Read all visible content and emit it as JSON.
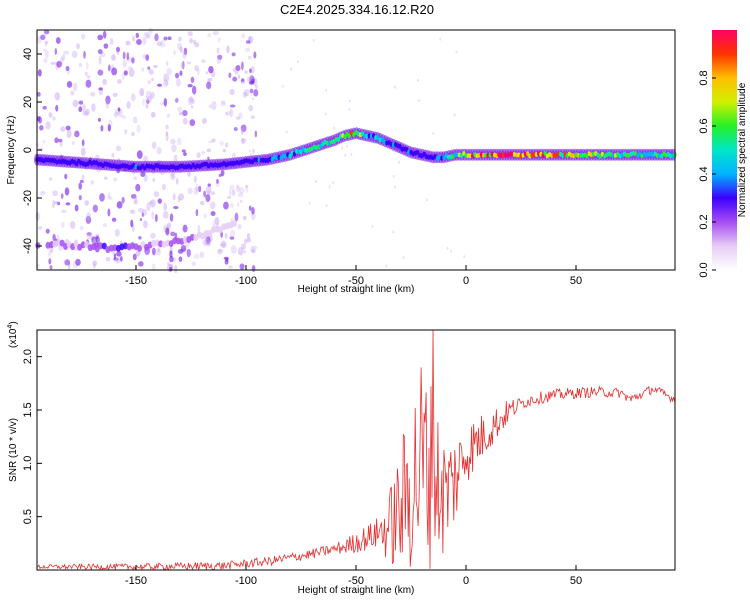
{
  "figure_title": "C2E4.2025.334.16.12.R20",
  "colors": {
    "snr_line": "#e53030",
    "spec_blob_base": "#7a1ee6",
    "spec_haze": "#c9a5f2"
  },
  "colorscale": [
    "#ffffff",
    "#e6ccf5",
    "#a64df2",
    "#3b00ff",
    "#00b3ff",
    "#00e6c8",
    "#26f026",
    "#d2f000",
    "#ffbf00",
    "#ff3300",
    "#ff0066"
  ],
  "chart_data": [
    {
      "type": "heatmap",
      "name": "spectrogram",
      "xlabel": "Height of straight line (km)",
      "ylabel": "Frequency (Hz)",
      "xlim": [
        -195,
        95
      ],
      "ylim": [
        -50,
        50
      ],
      "xticks": [
        -150,
        -100,
        -50,
        0,
        50
      ],
      "yticks": [
        -40,
        -20,
        0,
        20,
        40
      ],
      "ridge_main": {
        "x": [
          -195,
          -180,
          -165,
          -150,
          -130,
          -110,
          -100,
          -90,
          -80,
          -70,
          -60,
          -55,
          -50,
          -45,
          -40,
          -35,
          -30,
          -25,
          -20,
          -15,
          -10,
          -5,
          0,
          10,
          30,
          60,
          95
        ],
        "y": [
          -4,
          -5,
          -6,
          -7,
          -7,
          -6,
          -5,
          -4,
          -2,
          1,
          4,
          6,
          7,
          6,
          5,
          3,
          1,
          -1,
          -2,
          -3,
          -3,
          -2,
          -2,
          -2,
          -2,
          -2,
          -2
        ],
        "amplitude": [
          0.25,
          0.25,
          0.2,
          0.3,
          0.25,
          0.25,
          0.3,
          0.35,
          0.45,
          0.5,
          0.55,
          0.85,
          0.7,
          0.45,
          0.4,
          0.45,
          0.3,
          0.3,
          0.25,
          0.3,
          0.45,
          0.5,
          0.8,
          0.95,
          0.9,
          0.6,
          0.5
        ]
      },
      "ridge_lower": {
        "x": [
          -190,
          -175,
          -160,
          -145,
          -130,
          -115,
          -105
        ],
        "y": [
          -39,
          -40,
          -41,
          -40,
          -38,
          -34,
          -31
        ],
        "amplitude": [
          0.2,
          0.15,
          0.25,
          0.2,
          0.15,
          0.1,
          0.1
        ]
      },
      "colorbar": {
        "label": "Normalized spectral amplitude",
        "range": [
          0,
          1
        ],
        "ticks": [
          "0.0",
          "0.2",
          "0.4",
          "0.6",
          "0.8"
        ]
      }
    },
    {
      "type": "line",
      "name": "snr",
      "xlabel": "Height of straight line (km)",
      "ylabel": "SNR (10 * v/v)",
      "y_multiplier": "(x10",
      "y_multiplier_exp": "4",
      "y_multiplier_close": ")",
      "xlim": [
        -195,
        95
      ],
      "ylim": [
        0,
        2.25
      ],
      "xticks": [
        -150,
        -100,
        -50,
        0,
        50
      ],
      "ytick_values": [
        0.5,
        1.0,
        1.5,
        2.0
      ],
      "ytick_labels": [
        "0.5",
        "1.0",
        "1.5",
        "2.0"
      ],
      "series": [
        {
          "name": "SNR",
          "envelope_x": [
            -195,
            -150,
            -110,
            -90,
            -70,
            -55,
            -45,
            -35,
            -30,
            -25,
            -20,
            -15,
            -10,
            -5,
            0,
            5,
            10,
            15,
            20,
            25,
            30,
            40,
            50,
            60,
            70,
            75,
            80,
            85,
            90,
            95
          ],
          "envelope_y": [
            0.03,
            0.03,
            0.04,
            0.08,
            0.15,
            0.22,
            0.3,
            0.4,
            0.55,
            0.8,
            1.0,
            0.9,
            0.7,
            0.85,
            1.1,
            1.2,
            1.3,
            1.4,
            1.5,
            1.56,
            1.6,
            1.64,
            1.66,
            1.67,
            1.66,
            1.6,
            1.65,
            1.7,
            1.65,
            1.6
          ],
          "noise_amp_x": [
            -195,
            -60,
            -40,
            -35,
            -20,
            -10,
            0,
            10,
            25,
            95
          ],
          "noise_amp_y": [
            0.02,
            0.05,
            0.15,
            0.35,
            1.1,
            0.6,
            0.3,
            0.2,
            0.06,
            0.04
          ],
          "peak_x": -15,
          "peak_y": 2.25
        }
      ]
    }
  ]
}
